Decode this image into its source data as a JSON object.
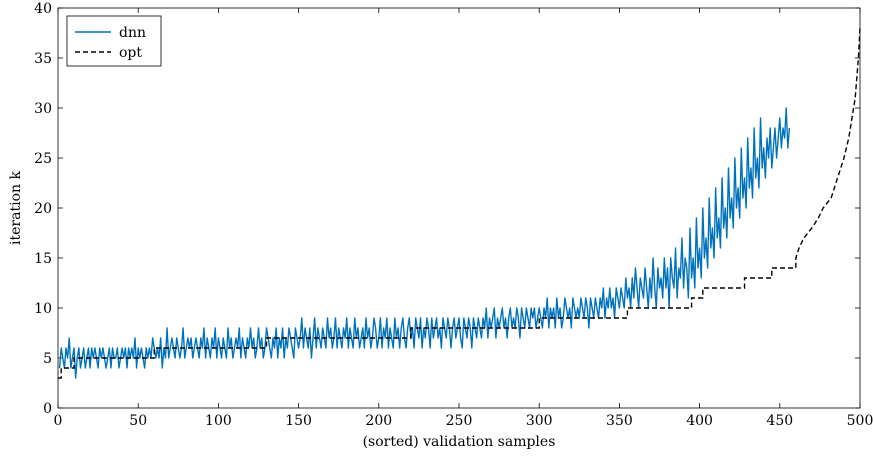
{
  "chart_data": {
    "type": "line",
    "xlabel": "(sorted) validation samples",
    "ylabel": "iteration k",
    "xlim": [
      0,
      500
    ],
    "ylim": [
      0,
      40
    ],
    "xticks": [
      0,
      50,
      100,
      150,
      200,
      250,
      300,
      350,
      400,
      450,
      500
    ],
    "yticks": [
      0,
      5,
      10,
      15,
      20,
      25,
      30,
      35,
      40
    ],
    "legend_position": "top-left",
    "grid": false,
    "series": [
      {
        "name": "dnn",
        "color": "#0072bd",
        "style": "solid",
        "x_step": 1,
        "x_start": 1,
        "values": [
          4,
          6,
          5,
          4,
          6,
          5,
          7,
          4,
          5,
          6,
          3,
          5,
          6,
          4,
          5,
          6,
          4,
          5,
          6,
          4,
          6,
          5,
          6,
          5,
          4,
          6,
          5,
          6,
          5,
          4,
          5,
          6,
          4,
          6,
          5,
          5,
          6,
          4,
          5,
          6,
          5,
          6,
          4,
          6,
          5,
          6,
          5,
          7,
          4,
          6,
          5,
          6,
          5,
          4,
          6,
          5,
          6,
          5,
          7,
          6,
          5,
          6,
          5,
          7,
          4,
          6,
          5,
          8,
          5,
          6,
          7,
          6,
          5,
          7,
          6,
          5,
          6,
          8,
          5,
          6,
          7,
          6,
          7,
          5,
          6,
          7,
          6,
          5,
          7,
          6,
          8,
          5,
          7,
          6,
          5,
          7,
          6,
          8,
          5,
          7,
          6,
          5,
          7,
          6,
          5,
          8,
          6,
          7,
          5,
          6,
          7,
          6,
          8,
          5,
          7,
          6,
          5,
          7,
          6,
          8,
          6,
          7,
          5,
          6,
          8,
          6,
          7,
          5,
          6,
          8,
          7,
          6,
          5,
          7,
          6,
          8,
          5,
          7,
          6,
          8,
          5,
          7,
          6,
          8,
          7,
          6,
          5,
          8,
          7,
          6,
          7,
          9,
          6,
          8,
          7,
          6,
          8,
          5,
          7,
          9,
          6,
          8,
          7,
          6,
          8,
          7,
          6,
          9,
          7,
          8,
          6,
          7,
          9,
          6,
          8,
          7,
          6,
          8,
          7,
          9,
          6,
          8,
          7,
          6,
          9,
          7,
          8,
          6,
          7,
          8,
          6,
          9,
          7,
          8,
          6,
          7,
          9,
          8,
          6,
          7,
          9,
          6,
          8,
          7,
          9,
          6,
          8,
          7,
          6,
          9,
          7,
          8,
          6,
          8,
          9,
          7,
          6,
          8,
          9,
          7,
          8,
          6,
          9,
          8,
          7,
          9,
          6,
          8,
          7,
          9,
          8,
          6,
          9,
          7,
          8,
          9,
          7,
          8,
          6,
          9,
          8,
          7,
          9,
          8,
          6,
          8,
          9,
          7,
          8,
          9,
          7,
          6,
          9,
          8,
          7,
          9,
          8,
          6,
          9,
          8,
          7,
          9,
          8,
          7,
          9,
          8,
          10,
          7,
          9,
          8,
          9,
          10,
          7,
          9,
          8,
          9,
          10,
          8,
          9,
          7,
          9,
          10,
          8,
          9,
          8,
          10,
          9,
          7,
          10,
          9,
          8,
          10,
          9,
          8,
          10,
          9,
          10,
          8,
          9,
          10,
          9,
          8,
          10,
          9,
          11,
          8,
          10,
          9,
          10,
          8,
          11,
          9,
          10,
          8,
          9,
          11,
          10,
          9,
          10,
          8,
          11,
          10,
          9,
          10,
          9,
          11,
          10,
          9,
          11,
          10,
          8,
          11,
          10,
          9,
          11,
          10,
          9,
          11,
          10,
          12,
          9,
          11,
          10,
          12,
          10,
          11,
          9,
          12,
          11,
          10,
          12,
          11,
          10,
          13,
          11,
          12,
          10,
          13,
          11,
          14,
          12,
          10,
          13,
          12,
          11,
          14,
          12,
          10,
          13,
          11,
          15,
          12,
          10,
          14,
          12,
          13,
          11,
          15,
          12,
          14,
          10,
          15,
          13,
          12,
          16,
          11,
          14,
          13,
          17,
          12,
          15,
          14,
          11,
          18,
          13,
          15,
          12,
          19,
          14,
          16,
          13,
          20,
          15,
          17,
          14,
          21,
          16,
          18,
          15,
          22,
          17,
          19,
          16,
          23,
          18,
          20,
          17,
          24,
          19,
          21,
          18,
          25,
          20,
          22,
          19,
          26,
          21,
          23,
          20,
          27,
          22,
          24,
          21,
          28,
          23,
          25,
          22,
          29,
          24,
          26,
          23,
          27,
          25,
          28,
          24,
          26,
          28,
          25,
          27,
          29,
          26,
          28,
          27,
          30,
          26,
          28
        ]
      },
      {
        "name": "opt",
        "color": "#000000",
        "style": "dashed",
        "points": [
          [
            0,
            3
          ],
          [
            2,
            3
          ],
          [
            2,
            4
          ],
          [
            10,
            4
          ],
          [
            10,
            5
          ],
          [
            60,
            5
          ],
          [
            60,
            6
          ],
          [
            130,
            6
          ],
          [
            130,
            7
          ],
          [
            220,
            7
          ],
          [
            220,
            8
          ],
          [
            300,
            8
          ],
          [
            300,
            9
          ],
          [
            355,
            9
          ],
          [
            355,
            10
          ],
          [
            395,
            10
          ],
          [
            395,
            11
          ],
          [
            402,
            11
          ],
          [
            402,
            12
          ],
          [
            428,
            12
          ],
          [
            428,
            13
          ],
          [
            445,
            13
          ],
          [
            445,
            14
          ],
          [
            460,
            14
          ],
          [
            460,
            15
          ],
          [
            462,
            16
          ],
          [
            465,
            17
          ],
          [
            470,
            18
          ],
          [
            474,
            19
          ],
          [
            477,
            20
          ],
          [
            482,
            21
          ],
          [
            486,
            23
          ],
          [
            490,
            25
          ],
          [
            493,
            27
          ],
          [
            495,
            29
          ],
          [
            497,
            31
          ],
          [
            498,
            33
          ],
          [
            499,
            35
          ],
          [
            500,
            38
          ]
        ]
      }
    ]
  }
}
